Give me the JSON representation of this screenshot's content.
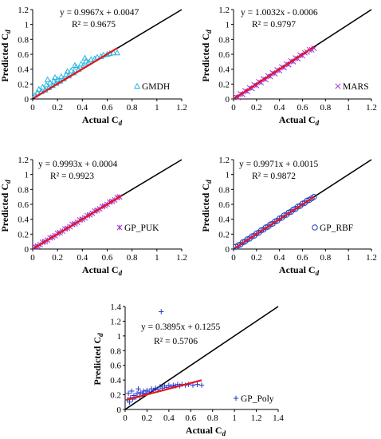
{
  "chart_data": [
    {
      "type": "scatter",
      "model": "GMDH",
      "equation": "y = 0.9967x + 0.0047",
      "r2": "R² = 0.9675",
      "xlabel": "Actual",
      "ylabel": "Predicted",
      "subscript": "d",
      "xlim": [
        0,
        1.2
      ],
      "ylim": [
        0,
        1.2
      ],
      "xticks": [
        "0",
        "0.2",
        "0.4",
        "0.6",
        "0.8",
        "1",
        "1.2"
      ],
      "yticks": [
        "0",
        "0.2",
        "0.4",
        "0.6",
        "0.8",
        "1",
        "1.2"
      ],
      "marker": "triangle",
      "marker_color": "#27b6e0",
      "line_color": "#e8141c",
      "fit": {
        "slope": 0.9967,
        "intercept": 0.0047,
        "x_range": [
          0.01,
          0.68
        ]
      },
      "points": [
        [
          0.02,
          0.05
        ],
        [
          0.04,
          0.08
        ],
        [
          0.05,
          0.13
        ],
        [
          0.07,
          0.1
        ],
        [
          0.08,
          0.16
        ],
        [
          0.1,
          0.12
        ],
        [
          0.11,
          0.19
        ],
        [
          0.13,
          0.15
        ],
        [
          0.14,
          0.22
        ],
        [
          0.16,
          0.18
        ],
        [
          0.17,
          0.24
        ],
        [
          0.19,
          0.21
        ],
        [
          0.2,
          0.26
        ],
        [
          0.22,
          0.24
        ],
        [
          0.23,
          0.3
        ],
        [
          0.25,
          0.27
        ],
        [
          0.27,
          0.33
        ],
        [
          0.29,
          0.31
        ],
        [
          0.31,
          0.38
        ],
        [
          0.33,
          0.35
        ],
        [
          0.35,
          0.43
        ],
        [
          0.37,
          0.4
        ],
        [
          0.39,
          0.47
        ],
        [
          0.41,
          0.45
        ],
        [
          0.43,
          0.51
        ],
        [
          0.45,
          0.49
        ],
        [
          0.47,
          0.53
        ],
        [
          0.5,
          0.54
        ],
        [
          0.52,
          0.56
        ],
        [
          0.55,
          0.57
        ],
        [
          0.57,
          0.59
        ],
        [
          0.6,
          0.6
        ],
        [
          0.62,
          0.61
        ],
        [
          0.65,
          0.62
        ],
        [
          0.68,
          0.62
        ],
        [
          0.12,
          0.26
        ],
        [
          0.18,
          0.29
        ],
        [
          0.28,
          0.37
        ],
        [
          0.34,
          0.45
        ],
        [
          0.42,
          0.55
        ]
      ]
    },
    {
      "type": "scatter",
      "model": "MARS",
      "equation": "y = 1.0032x - 0.0006",
      "r2": "R² = 0.9797",
      "xlabel": "Actual",
      "ylabel": "Predicted",
      "subscript": "d",
      "xlim": [
        0,
        1.2
      ],
      "ylim": [
        0,
        1.2
      ],
      "xticks": [
        "0",
        "0.2",
        "0.4",
        "0.6",
        "0.8",
        "1",
        "1.2"
      ],
      "yticks": [
        "0",
        "0.2",
        "0.4",
        "0.6",
        "0.8",
        "1",
        "1.2"
      ],
      "marker": "x",
      "marker_color": "#9b30d0",
      "line_color": "#e8141c",
      "fit": {
        "slope": 1.0032,
        "intercept": -0.0006,
        "x_range": [
          0.01,
          0.7
        ]
      },
      "points": [
        [
          0.02,
          0.03
        ],
        [
          0.04,
          0.02
        ],
        [
          0.06,
          0.07
        ],
        [
          0.08,
          0.06
        ],
        [
          0.1,
          0.11
        ],
        [
          0.12,
          0.1
        ],
        [
          0.14,
          0.15
        ],
        [
          0.16,
          0.14
        ],
        [
          0.18,
          0.19
        ],
        [
          0.2,
          0.18
        ],
        [
          0.22,
          0.23
        ],
        [
          0.24,
          0.22
        ],
        [
          0.26,
          0.27
        ],
        [
          0.28,
          0.26
        ],
        [
          0.3,
          0.31
        ],
        [
          0.32,
          0.3
        ],
        [
          0.34,
          0.35
        ],
        [
          0.36,
          0.34
        ],
        [
          0.38,
          0.39
        ],
        [
          0.4,
          0.38
        ],
        [
          0.42,
          0.43
        ],
        [
          0.44,
          0.42
        ],
        [
          0.46,
          0.47
        ],
        [
          0.48,
          0.46
        ],
        [
          0.5,
          0.51
        ],
        [
          0.52,
          0.5
        ],
        [
          0.54,
          0.55
        ],
        [
          0.56,
          0.54
        ],
        [
          0.58,
          0.59
        ],
        [
          0.6,
          0.58
        ],
        [
          0.62,
          0.62
        ],
        [
          0.64,
          0.63
        ],
        [
          0.66,
          0.66
        ],
        [
          0.68,
          0.66
        ],
        [
          0.7,
          0.68
        ]
      ]
    },
    {
      "type": "scatter",
      "model": "GP_PUK",
      "equation": "y = 0.9993x + 0.0004",
      "r2": "R² = 0.9923",
      "xlabel": "Actual",
      "ylabel": "Predicted",
      "subscript": "d",
      "xlim": [
        0,
        1.2
      ],
      "ylim": [
        0,
        1.2
      ],
      "xticks": [
        "0",
        "0.2",
        "0.4",
        "0.6",
        "0.8",
        "1",
        "1.2"
      ],
      "yticks": [
        "0",
        "0.2",
        "0.4",
        "0.6",
        "0.8",
        "1",
        "1.2"
      ],
      "marker": "asterisk",
      "marker_color": "#9b30d0",
      "line_color": "#e8141c",
      "fit": {
        "slope": 0.9993,
        "intercept": 0.0004,
        "x_range": [
          0.01,
          0.72
        ]
      },
      "points": [
        [
          0.02,
          0.03
        ],
        [
          0.04,
          0.04
        ],
        [
          0.06,
          0.06
        ],
        [
          0.08,
          0.09
        ],
        [
          0.1,
          0.1
        ],
        [
          0.12,
          0.12
        ],
        [
          0.14,
          0.15
        ],
        [
          0.16,
          0.16
        ],
        [
          0.18,
          0.18
        ],
        [
          0.2,
          0.21
        ],
        [
          0.22,
          0.22
        ],
        [
          0.24,
          0.24
        ],
        [
          0.26,
          0.27
        ],
        [
          0.28,
          0.28
        ],
        [
          0.3,
          0.3
        ],
        [
          0.32,
          0.33
        ],
        [
          0.34,
          0.34
        ],
        [
          0.36,
          0.36
        ],
        [
          0.38,
          0.39
        ],
        [
          0.4,
          0.4
        ],
        [
          0.42,
          0.42
        ],
        [
          0.44,
          0.45
        ],
        [
          0.46,
          0.46
        ],
        [
          0.48,
          0.48
        ],
        [
          0.5,
          0.51
        ],
        [
          0.52,
          0.52
        ],
        [
          0.54,
          0.54
        ],
        [
          0.56,
          0.57
        ],
        [
          0.58,
          0.58
        ],
        [
          0.6,
          0.6
        ],
        [
          0.62,
          0.63
        ],
        [
          0.64,
          0.64
        ],
        [
          0.66,
          0.66
        ],
        [
          0.68,
          0.69
        ],
        [
          0.7,
          0.7
        ]
      ]
    },
    {
      "type": "scatter",
      "model": "GP_RBF",
      "equation": "y = 0.9971x + 0.0015",
      "r2": "R² = 0.9872",
      "xlabel": "Actual",
      "ylabel": "Predicted",
      "subscript": "d",
      "xlim": [
        0,
        1.2
      ],
      "ylim": [
        0,
        1.2
      ],
      "xticks": [
        "0",
        "0.2",
        "0.4",
        "0.6",
        "0.8",
        "1",
        "1.2"
      ],
      "yticks": [
        "0",
        "0.2",
        "0.4",
        "0.6",
        "0.8",
        "1",
        "1.2"
      ],
      "marker": "circle",
      "marker_color": "#1f3fbf",
      "line_color": "#e8141c",
      "fit": {
        "slope": 0.9971,
        "intercept": 0.0015,
        "x_range": [
          0.01,
          0.7
        ]
      },
      "points": [
        [
          0.02,
          0.03
        ],
        [
          0.04,
          0.05
        ],
        [
          0.06,
          0.06
        ],
        [
          0.08,
          0.09
        ],
        [
          0.1,
          0.1
        ],
        [
          0.12,
          0.13
        ],
        [
          0.14,
          0.14
        ],
        [
          0.16,
          0.17
        ],
        [
          0.18,
          0.18
        ],
        [
          0.2,
          0.21
        ],
        [
          0.22,
          0.22
        ],
        [
          0.24,
          0.25
        ],
        [
          0.26,
          0.26
        ],
        [
          0.28,
          0.29
        ],
        [
          0.3,
          0.3
        ],
        [
          0.32,
          0.33
        ],
        [
          0.34,
          0.34
        ],
        [
          0.36,
          0.37
        ],
        [
          0.38,
          0.38
        ],
        [
          0.4,
          0.41
        ],
        [
          0.42,
          0.42
        ],
        [
          0.44,
          0.45
        ],
        [
          0.46,
          0.46
        ],
        [
          0.48,
          0.49
        ],
        [
          0.5,
          0.5
        ],
        [
          0.52,
          0.53
        ],
        [
          0.54,
          0.54
        ],
        [
          0.56,
          0.57
        ],
        [
          0.58,
          0.58
        ],
        [
          0.6,
          0.61
        ],
        [
          0.62,
          0.62
        ],
        [
          0.64,
          0.65
        ],
        [
          0.66,
          0.66
        ],
        [
          0.68,
          0.68
        ],
        [
          0.7,
          0.7
        ]
      ]
    },
    {
      "type": "scatter",
      "model": "GP_Poly",
      "equation": "y = 0.3895x + 0.1255",
      "r2": "R² = 0.5706",
      "xlabel": "Actual",
      "ylabel": "Predicted",
      "subscript": "d",
      "xlim": [
        0,
        1.4
      ],
      "ylim": [
        0,
        1.4
      ],
      "xticks": [
        "0",
        "0.2",
        "0.4",
        "0.6",
        "0.8",
        "1",
        "1.2",
        "1.4"
      ],
      "yticks": [
        "0",
        "0.2",
        "0.4",
        "0.6",
        "0.8",
        "1",
        "1.2",
        "1.4"
      ],
      "marker": "plus",
      "marker_color": "#2638c8",
      "line_color": "#e8141c",
      "fit": {
        "slope": 0.3895,
        "intercept": 0.1255,
        "x_range": [
          0.01,
          0.7
        ]
      },
      "points": [
        [
          0.02,
          0.13
        ],
        [
          0.04,
          0.1
        ],
        [
          0.05,
          0.16
        ],
        [
          0.07,
          0.14
        ],
        [
          0.08,
          0.19
        ],
        [
          0.1,
          0.17
        ],
        [
          0.11,
          0.22
        ],
        [
          0.13,
          0.18
        ],
        [
          0.14,
          0.23
        ],
        [
          0.16,
          0.21
        ],
        [
          0.17,
          0.25
        ],
        [
          0.19,
          0.22
        ],
        [
          0.2,
          0.26
        ],
        [
          0.22,
          0.24
        ],
        [
          0.24,
          0.28
        ],
        [
          0.26,
          0.26
        ],
        [
          0.28,
          0.29
        ],
        [
          0.3,
          0.27
        ],
        [
          0.32,
          0.31
        ],
        [
          0.34,
          0.29
        ],
        [
          0.36,
          0.32
        ],
        [
          0.38,
          0.3
        ],
        [
          0.4,
          0.33
        ],
        [
          0.42,
          0.31
        ],
        [
          0.44,
          0.33
        ],
        [
          0.46,
          0.32
        ],
        [
          0.48,
          0.34
        ],
        [
          0.5,
          0.32
        ],
        [
          0.52,
          0.34
        ],
        [
          0.55,
          0.33
        ],
        [
          0.58,
          0.34
        ],
        [
          0.62,
          0.33
        ],
        [
          0.66,
          0.34
        ],
        [
          0.7,
          0.33
        ],
        [
          0.06,
          0.25
        ],
        [
          0.12,
          0.28
        ],
        [
          0.03,
          0.22
        ],
        [
          0.33,
          1.33
        ]
      ]
    }
  ]
}
